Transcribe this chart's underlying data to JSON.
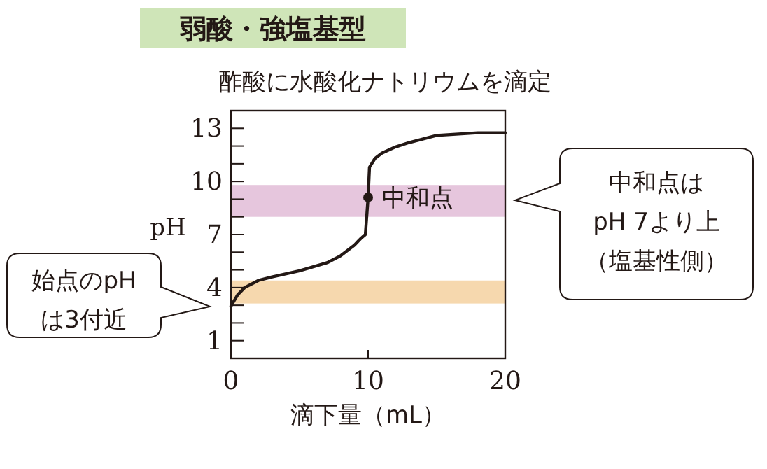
{
  "chart_data": {
    "type": "line",
    "title": "弱酸・強塩基型",
    "subtitle": "酢酸に水酸化ナトリウムを滴定",
    "xlabel": "滴下量（mL）",
    "ylabel": "pH",
    "xlim": [
      0,
      20
    ],
    "xticks": [
      0,
      10,
      20
    ],
    "ylim": [
      0,
      14
    ],
    "yticks": [
      {
        "value": 0,
        "label": null
      },
      1,
      {
        "value": 2,
        "label": null
      },
      {
        "value": 3,
        "label": null
      },
      4,
      {
        "value": 5,
        "label": null
      },
      {
        "value": 6,
        "label": null
      },
      7,
      {
        "value": 8,
        "label": null
      },
      {
        "value": 9,
        "label": null
      },
      10,
      {
        "value": 11,
        "label": null
      },
      {
        "value": 12,
        "label": null
      },
      13,
      {
        "value": 14,
        "label": null
      }
    ],
    "series": [
      {
        "type": "line",
        "color": "#231815",
        "x": [
          0,
          0.5,
          1,
          2,
          3,
          5,
          7,
          8,
          9,
          9.5,
          9.8,
          10,
          10.1,
          10.5,
          11,
          12,
          13,
          15,
          18,
          20
        ],
        "values": [
          2.95,
          3.6,
          4.0,
          4.4,
          4.6,
          4.95,
          5.4,
          5.8,
          6.4,
          6.8,
          7.0,
          9.1,
          10.8,
          11.3,
          11.6,
          11.95,
          12.2,
          12.6,
          12.75,
          12.75
        ]
      },
      {
        "type": "scatter",
        "marker": "circle",
        "color": "#231815",
        "x": [
          10
        ],
        "values": [
          9.1
        ]
      }
    ],
    "bands": [
      {
        "axis": "y",
        "from": 8.0,
        "to": 9.8,
        "color": "#e6c6dd"
      },
      {
        "axis": "y",
        "from": 3.1,
        "to": 4.4,
        "color": "#f6d8ae"
      }
    ],
    "annotations": [
      {
        "text": "中和点",
        "x": 10,
        "y": 9.1
      },
      "中和点は",
      "pH 7より上",
      "（塩基性側）",
      "始点のpH",
      "は3付近"
    ]
  }
}
